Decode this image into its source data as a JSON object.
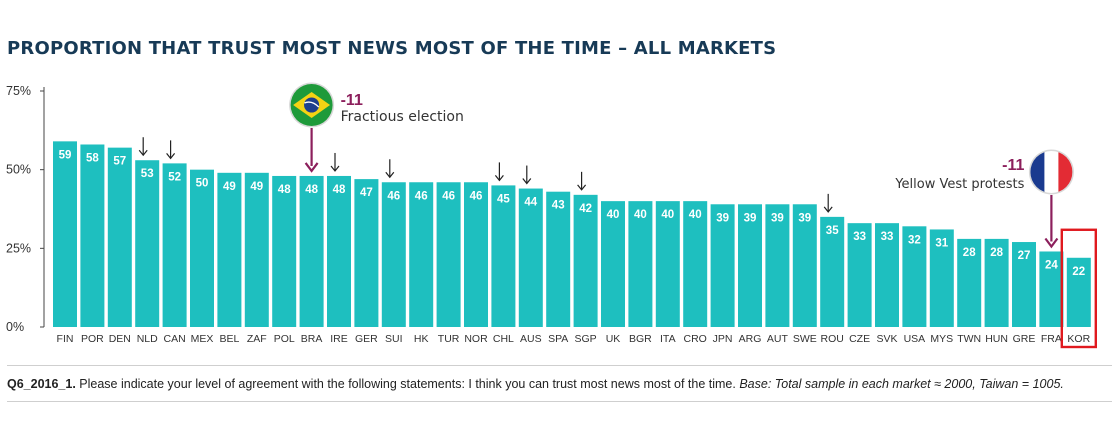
{
  "title": "PROPORTION THAT TRUST MOST NEWS MOST OF THE TIME – ALL MARKETS",
  "chart_data": {
    "type": "bar",
    "title": "PROPORTION THAT TRUST MOST NEWS MOST OF THE TIME – ALL MARKETS",
    "xlabel": "",
    "ylabel": "",
    "ylim": [
      0,
      75
    ],
    "yticks": [
      0,
      25,
      50,
      75
    ],
    "ytick_labels": [
      "0%",
      "25%",
      "50%",
      "75%"
    ],
    "grid": false,
    "categories": [
      "FIN",
      "POR",
      "DEN",
      "NLD",
      "CAN",
      "MEX",
      "BEL",
      "ZAF",
      "POL",
      "BRA",
      "IRE",
      "GER",
      "SUI",
      "HK",
      "TUR",
      "NOR",
      "CHL",
      "AUS",
      "SPA",
      "SGP",
      "UK",
      "BGR",
      "ITA",
      "CRO",
      "JPN",
      "ARG",
      "AUT",
      "SWE",
      "ROU",
      "CZE",
      "SVK",
      "USA",
      "MYS",
      "TWN",
      "HUN",
      "GRE",
      "FRA",
      "KOR"
    ],
    "values": [
      59,
      58,
      57,
      53,
      52,
      50,
      49,
      49,
      48,
      48,
      48,
      47,
      46,
      46,
      46,
      46,
      45,
      44,
      43,
      42,
      40,
      40,
      40,
      40,
      39,
      39,
      39,
      39,
      35,
      33,
      33,
      32,
      31,
      28,
      28,
      27,
      24,
      22
    ],
    "down_arrow_markets": [
      "NLD",
      "CAN",
      "IRE",
      "SUI",
      "CHL",
      "AUS",
      "SGP",
      "ROU"
    ],
    "highlighted_market": "KOR",
    "annotations": [
      {
        "market": "BRA",
        "change": "-11",
        "text": "Fractious election",
        "flag": "brazil"
      },
      {
        "market": "FRA",
        "change": "-11",
        "text": "Yellow Vest protests",
        "flag": "france"
      }
    ],
    "colors": {
      "bar": "#1ebfbf",
      "label": "#ffffff",
      "axis": "#444444",
      "annotation": "#8c1f5c",
      "highlight": "#e0191e",
      "arrow": "#222222"
    }
  },
  "footnote": {
    "question_id": "Q6_2016_1.",
    "question": " Please indicate your level of agreement with the following statements: I think you can trust most news most of the time. ",
    "base": "Base: Total sample in each market ≈ 2000, Taiwan = 1005."
  }
}
